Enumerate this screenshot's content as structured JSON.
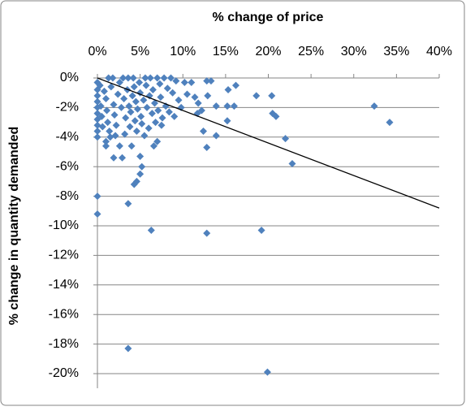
{
  "chart_data": {
    "type": "scatter",
    "title": "% change of price",
    "y_label": "% change in quantity demanded",
    "color": "#4f81bd",
    "x": [
      0,
      0,
      3.6,
      3.6,
      6.3,
      12.8,
      19.2,
      19.9,
      32.4,
      34.2,
      22.8,
      22.0,
      20.5,
      20.9,
      20.4,
      18.6,
      16.2,
      15.2,
      15.2,
      15.3,
      16.0,
      13.3,
      12.8,
      12.9,
      12.4,
      12.8,
      13.9,
      13.9,
      11.4,
      11.7,
      1.9,
      2.9,
      2.6,
      4.3,
      4.6,
      5.0,
      5.2,
      5.0,
      1.0,
      1.0,
      6.6,
      7.0,
      0,
      0,
      0,
      0,
      0,
      0,
      0,
      0,
      0,
      0,
      0.3,
      0.4,
      0.5,
      0.6,
      0.8,
      1.0,
      1.1,
      1.2,
      1.3,
      1.4,
      1.6,
      1.8,
      1.9,
      2.0,
      2.2,
      2.4,
      2.6,
      2.8,
      3.0,
      3.1,
      3.2,
      3.3,
      3.5,
      3.6,
      3.7,
      3.8,
      3.9,
      4.0,
      4.1,
      4.2,
      4.3,
      4.4,
      4.5,
      4.6,
      4.7,
      4.9,
      5.0,
      5.1,
      5.2,
      5.4,
      5.6,
      5.7,
      5.8,
      6.0,
      6.1,
      6.2,
      6.4,
      6.5,
      6.7,
      6.8,
      7.0,
      7.1,
      7.3,
      7.4,
      7.6,
      7.8,
      8.0,
      8.2,
      8.4,
      8.6,
      8.8,
      9.0,
      9.2,
      9.5,
      9.8,
      10.2,
      10.5,
      11.0,
      11.8,
      12.2,
      2.1,
      1.5,
      5.5,
      7.5
    ],
    "values": [
      -8.0,
      -9.2,
      -8.5,
      -18.3,
      -10.3,
      -10.5,
      -10.3,
      -19.9,
      -1.9,
      -3.0,
      -5.8,
      -4.1,
      -2.4,
      -2.6,
      -1.2,
      -1.2,
      -0.5,
      -1.9,
      -2.9,
      -0.8,
      -1.9,
      -0.2,
      -0.2,
      -1.2,
      -3.6,
      -4.7,
      -3.9,
      -1.9,
      -1.3,
      -2.4,
      -5.4,
      -5.4,
      -4.6,
      -7.2,
      -7.0,
      -6.5,
      -6.0,
      -5.3,
      -4.3,
      -4.6,
      -4.6,
      -4.3,
      -0.3,
      -0.8,
      -1.2,
      -1.6,
      -2.0,
      -2.4,
      -2.8,
      -3.2,
      -3.6,
      -4.0,
      -0.5,
      -1.9,
      -2.6,
      -3.3,
      -0.9,
      -1.4,
      -2.2,
      -3.0,
      0,
      -3.6,
      -0.6,
      0,
      -1.8,
      -2.5,
      -3.2,
      -1.1,
      -0.3,
      -2.0,
      0,
      -1.4,
      -3.8,
      -2.7,
      -0.8,
      0,
      -1.9,
      -3.3,
      -2.3,
      -4.6,
      -1.2,
      0,
      -0.6,
      -2.9,
      -1.6,
      -3.6,
      -2.1,
      -0.3,
      -1.0,
      -2.6,
      -3.1,
      -1.5,
      0,
      -0.5,
      -2.0,
      -3.4,
      -1.2,
      0,
      -2.4,
      -0.8,
      -1.7,
      -3.0,
      0,
      -2.2,
      -0.4,
      -1.3,
      -2.7,
      0,
      -1.9,
      -0.7,
      -2.3,
      0,
      -1.0,
      -2.6,
      -0.2,
      -1.5,
      -2.0,
      -0.3,
      -1.1,
      -0.3,
      -1.7,
      -2.2,
      -3.9,
      -4.0,
      -3.9,
      -3.2
    ],
    "trendline": {
      "x": [
        0,
        40
      ],
      "values": [
        0,
        -8.8
      ],
      "color": "#000000"
    },
    "xlim": [
      0,
      40
    ],
    "ylim": [
      -20,
      0
    ],
    "xticks": [
      {
        "value": 0,
        "label": "0%"
      },
      {
        "value": 5,
        "label": "5%"
      },
      {
        "value": 10,
        "label": "10%"
      },
      {
        "value": 15,
        "label": "15%"
      },
      {
        "value": 20,
        "label": "20%"
      },
      {
        "value": 25,
        "label": "25%"
      },
      {
        "value": 30,
        "label": "30%"
      },
      {
        "value": 35,
        "label": "35%"
      },
      {
        "value": 40,
        "label": "40%"
      }
    ],
    "yticks": [
      {
        "value": 0,
        "label": "0%"
      },
      {
        "value": -2,
        "label": "-2%"
      },
      {
        "value": -4,
        "label": "-4%"
      },
      {
        "value": -6,
        "label": "-6%"
      },
      {
        "value": -8,
        "label": "-8%"
      },
      {
        "value": -10,
        "label": "-10%"
      },
      {
        "value": -12,
        "label": "-12%"
      },
      {
        "value": -14,
        "label": "-14%"
      },
      {
        "value": -16,
        "label": "-16%"
      },
      {
        "value": -18,
        "label": "-18%"
      },
      {
        "value": -20,
        "label": "-20%"
      }
    ],
    "grid": true
  }
}
